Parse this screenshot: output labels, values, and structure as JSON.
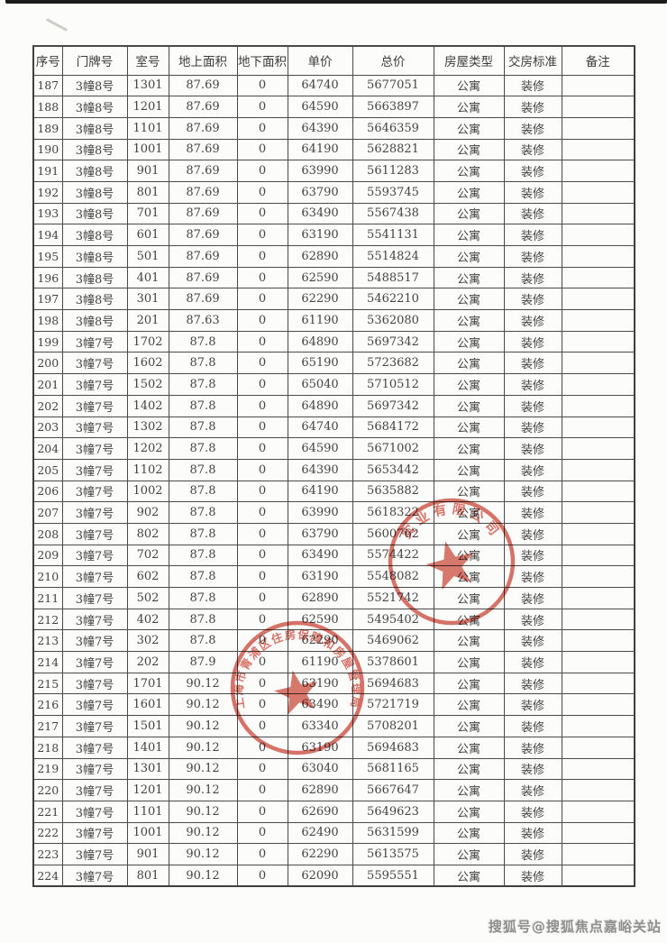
{
  "document": {
    "type_label": "房价表(扫描件)",
    "watermark": "搜狐号@搜狐焦点嘉峪关站"
  },
  "colors": {
    "stamp_red": "#cb4335",
    "table_line": "#4a4a48",
    "paper": "#fcfcfa",
    "ink": "#434343"
  },
  "table": {
    "headers": [
      "序号",
      "门牌号",
      "室号",
      "地上面积",
      "地下面积",
      "单价",
      "总价",
      "房屋类型",
      "交房标准",
      "备注"
    ],
    "rows": [
      [
        "187",
        "3幢8号",
        "1301",
        "87.69",
        "0",
        "64740",
        "5677051",
        "公寓",
        "装修",
        ""
      ],
      [
        "188",
        "3幢8号",
        "1201",
        "87.69",
        "0",
        "64590",
        "5663897",
        "公寓",
        "装修",
        ""
      ],
      [
        "189",
        "3幢8号",
        "1101",
        "87.69",
        "0",
        "64390",
        "5646359",
        "公寓",
        "装修",
        ""
      ],
      [
        "190",
        "3幢8号",
        "1001",
        "87.69",
        "0",
        "64190",
        "5628821",
        "公寓",
        "装修",
        ""
      ],
      [
        "191",
        "3幢8号",
        "901",
        "87.69",
        "0",
        "63990",
        "5611283",
        "公寓",
        "装修",
        ""
      ],
      [
        "192",
        "3幢8号",
        "801",
        "87.69",
        "0",
        "63790",
        "5593745",
        "公寓",
        "装修",
        ""
      ],
      [
        "193",
        "3幢8号",
        "701",
        "87.69",
        "0",
        "63490",
        "5567438",
        "公寓",
        "装修",
        ""
      ],
      [
        "194",
        "3幢8号",
        "601",
        "87.69",
        "0",
        "63190",
        "5541131",
        "公寓",
        "装修",
        ""
      ],
      [
        "195",
        "3幢8号",
        "501",
        "87.69",
        "0",
        "62890",
        "5514824",
        "公寓",
        "装修",
        ""
      ],
      [
        "196",
        "3幢8号",
        "401",
        "87.69",
        "0",
        "62590",
        "5488517",
        "公寓",
        "装修",
        ""
      ],
      [
        "197",
        "3幢8号",
        "301",
        "87.69",
        "0",
        "62290",
        "5462210",
        "公寓",
        "装修",
        ""
      ],
      [
        "198",
        "3幢8号",
        "201",
        "87.63",
        "0",
        "61190",
        "5362080",
        "公寓",
        "装修",
        ""
      ],
      [
        "199",
        "3幢7号",
        "1702",
        "87.8",
        "0",
        "64890",
        "5697342",
        "公寓",
        "装修",
        ""
      ],
      [
        "200",
        "3幢7号",
        "1602",
        "87.8",
        "0",
        "65190",
        "5723682",
        "公寓",
        "装修",
        ""
      ],
      [
        "201",
        "3幢7号",
        "1502",
        "87.8",
        "0",
        "65040",
        "5710512",
        "公寓",
        "装修",
        ""
      ],
      [
        "202",
        "3幢7号",
        "1402",
        "87.8",
        "0",
        "64890",
        "5697342",
        "公寓",
        "装修",
        ""
      ],
      [
        "203",
        "3幢7号",
        "1302",
        "87.8",
        "0",
        "64740",
        "5684172",
        "公寓",
        "装修",
        ""
      ],
      [
        "204",
        "3幢7号",
        "1202",
        "87.8",
        "0",
        "64590",
        "5671002",
        "公寓",
        "装修",
        ""
      ],
      [
        "205",
        "3幢7号",
        "1102",
        "87.8",
        "0",
        "64390",
        "5653442",
        "公寓",
        "装修",
        ""
      ],
      [
        "206",
        "3幢7号",
        "1002",
        "87.8",
        "0",
        "64190",
        "5635882",
        "公寓",
        "装修",
        ""
      ],
      [
        "207",
        "3幢7号",
        "902",
        "87.8",
        "0",
        "63990",
        "5618322",
        "公寓",
        "装修",
        ""
      ],
      [
        "208",
        "3幢7号",
        "802",
        "87.8",
        "0",
        "63790",
        "5600762",
        "公寓",
        "装修",
        ""
      ],
      [
        "209",
        "3幢7号",
        "702",
        "87.8",
        "0",
        "63490",
        "5574422",
        "公寓",
        "装修",
        ""
      ],
      [
        "210",
        "3幢7号",
        "602",
        "87.8",
        "0",
        "63190",
        "5548082",
        "公寓",
        "装修",
        ""
      ],
      [
        "211",
        "3幢7号",
        "502",
        "87.8",
        "0",
        "62890",
        "5521742",
        "公寓",
        "装修",
        ""
      ],
      [
        "212",
        "3幢7号",
        "402",
        "87.8",
        "0",
        "62590",
        "5495402",
        "公寓",
        "装修",
        ""
      ],
      [
        "213",
        "3幢7号",
        "302",
        "87.8",
        "0",
        "62290",
        "5469062",
        "公寓",
        "装修",
        ""
      ],
      [
        "214",
        "3幢7号",
        "202",
        "87.9",
        "0",
        "61190",
        "5378601",
        "公寓",
        "装修",
        ""
      ],
      [
        "215",
        "3幢7号",
        "1701",
        "90.12",
        "0",
        "63190",
        "5694683",
        "公寓",
        "装修",
        ""
      ],
      [
        "216",
        "3幢7号",
        "1601",
        "90.12",
        "0",
        "63490",
        "5721719",
        "公寓",
        "装修",
        ""
      ],
      [
        "217",
        "3幢7号",
        "1501",
        "90.12",
        "0",
        "63340",
        "5708201",
        "公寓",
        "装修",
        ""
      ],
      [
        "218",
        "3幢7号",
        "1401",
        "90.12",
        "0",
        "63190",
        "5694683",
        "公寓",
        "装修",
        ""
      ],
      [
        "219",
        "3幢7号",
        "1301",
        "90.12",
        "0",
        "63040",
        "5681165",
        "公寓",
        "装修",
        ""
      ],
      [
        "220",
        "3幢7号",
        "1201",
        "90.12",
        "0",
        "62890",
        "5667647",
        "公寓",
        "装修",
        ""
      ],
      [
        "221",
        "3幢7号",
        "1101",
        "90.12",
        "0",
        "62690",
        "5649623",
        "公寓",
        "装修",
        ""
      ],
      [
        "222",
        "3幢7号",
        "1001",
        "90.12",
        "0",
        "62490",
        "5631599",
        "公寓",
        "装修",
        ""
      ],
      [
        "223",
        "3幢7号",
        "901",
        "90.12",
        "0",
        "62290",
        "5613575",
        "公寓",
        "装修",
        ""
      ],
      [
        "224",
        "3幢7号",
        "801",
        "90.12",
        "0",
        "62090",
        "5595551",
        "公寓",
        "装修",
        ""
      ]
    ]
  },
  "stamps": {
    "company_seal": {
      "arc_text": "实业有限公司"
    },
    "government_seal": {
      "arc_text": "上海市青浦区住房保障和房屋管理局"
    }
  }
}
